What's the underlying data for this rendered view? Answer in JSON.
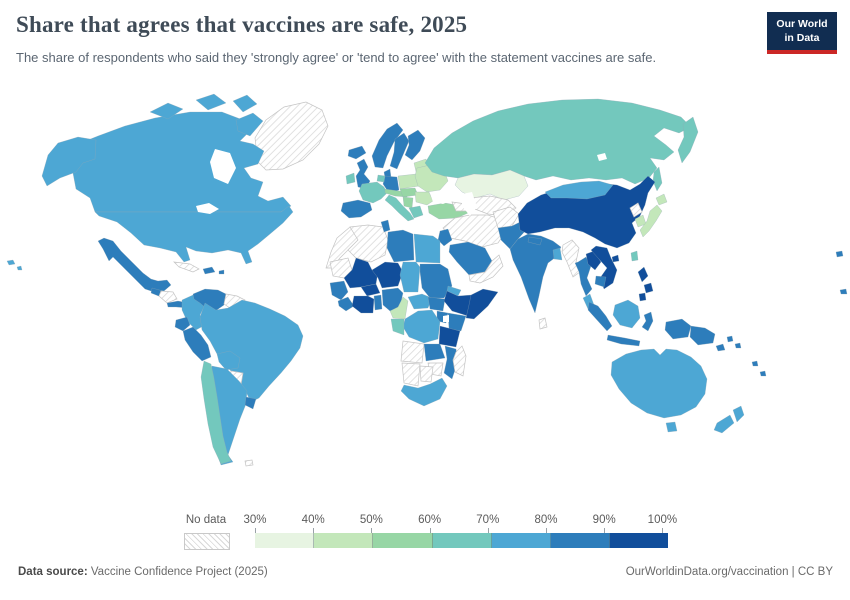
{
  "header": {
    "title": "Share that agrees that vaccines are safe, 2025",
    "subtitle": "The share of respondents who said they 'strongly agree' or 'tend to agree' with the statement vaccines are safe.",
    "logo_line1": "Our World",
    "logo_line2": "in Data",
    "logo_bg": "#112d51",
    "logo_accent": "#cb2726"
  },
  "footer": {
    "source_label": "Data source:",
    "source_text": " Vaccine Confidence Project (2025)",
    "right_text": "OurWorldinData.org/vaccination | CC BY"
  },
  "legend": {
    "no_data_label": "No data",
    "tick_labels": [
      "30%",
      "40%",
      "50%",
      "60%",
      "70%",
      "80%",
      "90%",
      "100%"
    ]
  },
  "chart_data": {
    "type": "choropleth",
    "title": "Share that agrees that vaccines are safe, 2025",
    "subtitle": "The share of respondents who said they 'strongly agree' or 'tend to agree' with the statement vaccines are safe.",
    "unit": "% agreeing vaccines are safe",
    "value_range": [
      30,
      100
    ],
    "legend_position": "bottom",
    "no_data": {
      "label": "No data",
      "fill": "hatched-white",
      "hatch_color": "#d8d8d8"
    },
    "bins": [
      {
        "id": "30-40",
        "range": "30-40%",
        "color": "#e7f4e2"
      },
      {
        "id": "40-50",
        "range": "40-50%",
        "color": "#c3e7ba"
      },
      {
        "id": "50-60",
        "range": "50-60%",
        "color": "#97d6a5"
      },
      {
        "id": "60-70",
        "range": "60-70%",
        "color": "#73c8bd"
      },
      {
        "id": "70-80",
        "range": "70-80%",
        "color": "#4da7d4"
      },
      {
        "id": "80-90",
        "range": "80-90%",
        "color": "#2d7dbb"
      },
      {
        "id": "90-100",
        "range": "90-100%",
        "color": "#114e9b"
      }
    ],
    "regions": [
      {
        "id": "greenland",
        "bin": "no-data"
      },
      {
        "id": "canada",
        "bin": "70-80"
      },
      {
        "id": "canadian-arctic",
        "bin": "70-80"
      },
      {
        "id": "alaska",
        "bin": "70-80"
      },
      {
        "id": "usa",
        "bin": "70-80"
      },
      {
        "id": "hawaii",
        "bin": "70-80"
      },
      {
        "id": "mexico",
        "bin": "80-90"
      },
      {
        "id": "guatemala",
        "bin": "80-90"
      },
      {
        "id": "honduras-nicaragua",
        "bin": "no-data"
      },
      {
        "id": "costa-rica-panama",
        "bin": "80-90"
      },
      {
        "id": "cuba",
        "bin": "no-data"
      },
      {
        "id": "hispaniola",
        "bin": "80-90"
      },
      {
        "id": "puerto-rico",
        "bin": "80-90"
      },
      {
        "id": "colombia",
        "bin": "70-80"
      },
      {
        "id": "venezuela",
        "bin": "80-90"
      },
      {
        "id": "guyanas",
        "bin": "no-data"
      },
      {
        "id": "ecuador",
        "bin": "80-90"
      },
      {
        "id": "peru",
        "bin": "80-90"
      },
      {
        "id": "brazil",
        "bin": "70-80"
      },
      {
        "id": "bolivia",
        "bin": "70-80"
      },
      {
        "id": "paraguay",
        "bin": "no-data"
      },
      {
        "id": "argentina",
        "bin": "70-80"
      },
      {
        "id": "chile",
        "bin": "60-70"
      },
      {
        "id": "uruguay",
        "bin": "80-90"
      },
      {
        "id": "falkland-islands",
        "bin": "no-data"
      },
      {
        "id": "iceland",
        "bin": "80-90"
      },
      {
        "id": "united-kingdom",
        "bin": "80-90"
      },
      {
        "id": "ireland",
        "bin": "60-70"
      },
      {
        "id": "norway",
        "bin": "80-90"
      },
      {
        "id": "sweden",
        "bin": "80-90"
      },
      {
        "id": "finland",
        "bin": "80-90"
      },
      {
        "id": "denmark",
        "bin": "80-90"
      },
      {
        "id": "baltic-states",
        "bin": "40-50"
      },
      {
        "id": "poland",
        "bin": "40-50"
      },
      {
        "id": "germany",
        "bin": "80-90"
      },
      {
        "id": "benelux",
        "bin": "60-70"
      },
      {
        "id": "france",
        "bin": "60-70"
      },
      {
        "id": "iberia",
        "bin": "80-90"
      },
      {
        "id": "italy",
        "bin": "60-70"
      },
      {
        "id": "alpine-states",
        "bin": "50-60"
      },
      {
        "id": "central-europe",
        "bin": "50-60"
      },
      {
        "id": "ukraine-belarus",
        "bin": "40-50"
      },
      {
        "id": "romania-bulgaria",
        "bin": "40-50"
      },
      {
        "id": "balkans",
        "bin": "50-60"
      },
      {
        "id": "greece",
        "bin": "60-70"
      },
      {
        "id": "turkey",
        "bin": "50-60"
      },
      {
        "id": "russia",
        "bin": "60-70"
      },
      {
        "id": "kamchatka",
        "bin": "60-70"
      },
      {
        "id": "sakhalin",
        "bin": "60-70"
      },
      {
        "id": "kazakhstan",
        "bin": "30-40"
      },
      {
        "id": "central-asia",
        "bin": "no-data"
      },
      {
        "id": "caucasus",
        "bin": "no-data"
      },
      {
        "id": "iran-iraq-syria",
        "bin": "no-data"
      },
      {
        "id": "israel-jordan",
        "bin": "80-90"
      },
      {
        "id": "saudi-arabia",
        "bin": "80-90"
      },
      {
        "id": "yemen-oman",
        "bin": "no-data"
      },
      {
        "id": "afghanistan",
        "bin": "no-data"
      },
      {
        "id": "pakistan",
        "bin": "80-90"
      },
      {
        "id": "india",
        "bin": "80-90"
      },
      {
        "id": "nepal",
        "bin": "80-90"
      },
      {
        "id": "bangladesh",
        "bin": "70-80"
      },
      {
        "id": "sri-lanka",
        "bin": "no-data"
      },
      {
        "id": "china",
        "bin": "90-100"
      },
      {
        "id": "mongolia",
        "bin": "70-80"
      },
      {
        "id": "north-korea",
        "bin": "no-data"
      },
      {
        "id": "south-korea",
        "bin": "40-50"
      },
      {
        "id": "japan",
        "bin": "40-50"
      },
      {
        "id": "taiwan",
        "bin": "60-70"
      },
      {
        "id": "myanmar",
        "bin": "no-data"
      },
      {
        "id": "thailand",
        "bin": "80-90"
      },
      {
        "id": "laos",
        "bin": "90-100"
      },
      {
        "id": "vietnam",
        "bin": "90-100"
      },
      {
        "id": "cambodia",
        "bin": "80-90"
      },
      {
        "id": "hainan",
        "bin": "90-100"
      },
      {
        "id": "malaysia",
        "bin": "70-80"
      },
      {
        "id": "sumatra",
        "bin": "80-90"
      },
      {
        "id": "java",
        "bin": "80-90"
      },
      {
        "id": "borneo",
        "bin": "70-80"
      },
      {
        "id": "sulawesi",
        "bin": "80-90"
      },
      {
        "id": "philippines",
        "bin": "90-100"
      },
      {
        "id": "west-papua",
        "bin": "80-90"
      },
      {
        "id": "papua-new-guinea",
        "bin": "80-90"
      },
      {
        "id": "solomon-islands",
        "bin": "80-90"
      },
      {
        "id": "pacific-islands",
        "bin": "80-90"
      },
      {
        "id": "micronesia",
        "bin": "80-90"
      },
      {
        "id": "morocco-w-sahara",
        "bin": "no-data"
      },
      {
        "id": "algeria",
        "bin": "no-data"
      },
      {
        "id": "tunisia",
        "bin": "80-90"
      },
      {
        "id": "libya",
        "bin": "80-90"
      },
      {
        "id": "egypt",
        "bin": "70-80"
      },
      {
        "id": "mauritania",
        "bin": "no-data"
      },
      {
        "id": "mali",
        "bin": "90-100"
      },
      {
        "id": "burkina-faso",
        "bin": "90-100"
      },
      {
        "id": "niger",
        "bin": "90-100"
      },
      {
        "id": "chad",
        "bin": "70-80"
      },
      {
        "id": "sudan",
        "bin": "80-90"
      },
      {
        "id": "eritrea",
        "bin": "70-80"
      },
      {
        "id": "senegal-guinea",
        "bin": "80-90"
      },
      {
        "id": "sierra-leone-liberia",
        "bin": "80-90"
      },
      {
        "id": "cote-divoire-ghana",
        "bin": "90-100"
      },
      {
        "id": "togo-benin",
        "bin": "80-90"
      },
      {
        "id": "nigeria",
        "bin": "80-90"
      },
      {
        "id": "cameroon",
        "bin": "40-50"
      },
      {
        "id": "central-african-republic",
        "bin": "70-80"
      },
      {
        "id": "south-sudan",
        "bin": "80-90"
      },
      {
        "id": "ethiopia",
        "bin": "90-100"
      },
      {
        "id": "somalia",
        "bin": "90-100"
      },
      {
        "id": "kenya",
        "bin": "80-90"
      },
      {
        "id": "uganda",
        "bin": "80-90"
      },
      {
        "id": "dr-congo",
        "bin": "70-80"
      },
      {
        "id": "gabon-congo",
        "bin": "60-70"
      },
      {
        "id": "tanzania",
        "bin": "90-100"
      },
      {
        "id": "angola",
        "bin": "no-data"
      },
      {
        "id": "zambia",
        "bin": "80-90"
      },
      {
        "id": "mozambique",
        "bin": "80-90"
      },
      {
        "id": "zimbabwe",
        "bin": "no-data"
      },
      {
        "id": "namibia",
        "bin": "no-data"
      },
      {
        "id": "botswana",
        "bin": "no-data"
      },
      {
        "id": "south-africa",
        "bin": "70-80"
      },
      {
        "id": "madagascar",
        "bin": "no-data"
      },
      {
        "id": "australia",
        "bin": "70-80"
      },
      {
        "id": "tasmania",
        "bin": "70-80"
      },
      {
        "id": "new-zealand",
        "bin": "70-80"
      }
    ],
    "source": "Vaccine Confidence Project (2025)",
    "attribution": "OurWorldinData.org/vaccination | CC BY"
  }
}
